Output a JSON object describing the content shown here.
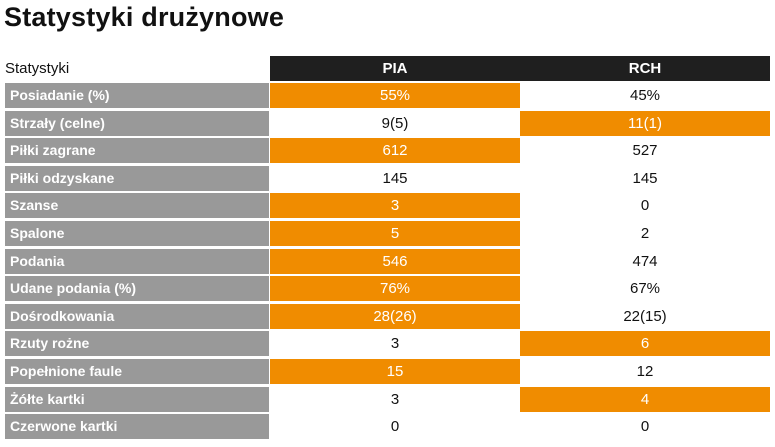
{
  "title": "Statystyki drużynowe",
  "header": {
    "label": "Statystyki",
    "team1": "PIA",
    "team2": "RCH"
  },
  "colors": {
    "highlight": "#f08c00",
    "label_bg": "#999999",
    "header_bg": "#1f1f1f"
  },
  "rows": [
    {
      "label": "Posiadanie (%)",
      "v1": "55%",
      "v2": "45%",
      "highlight": "team1"
    },
    {
      "label": "Strzały (celne)",
      "v1": "9(5)",
      "v2": "11(1)",
      "highlight": "team2"
    },
    {
      "label": "Piłki zagrane",
      "v1": "612",
      "v2": "527",
      "highlight": "team1"
    },
    {
      "label": "Piłki odzyskane",
      "v1": "145",
      "v2": "145",
      "highlight": "none"
    },
    {
      "label": "Szanse",
      "v1": "3",
      "v2": "0",
      "highlight": "team1"
    },
    {
      "label": "Spalone",
      "v1": "5",
      "v2": "2",
      "highlight": "team1"
    },
    {
      "label": "Podania",
      "v1": "546",
      "v2": "474",
      "highlight": "team1"
    },
    {
      "label": "Udane podania (%)",
      "v1": "76%",
      "v2": "67%",
      "highlight": "team1"
    },
    {
      "label": "Dośrodkowania",
      "v1": "28(26)",
      "v2": "22(15)",
      "highlight": "team1"
    },
    {
      "label": "Rzuty rożne",
      "v1": "3",
      "v2": "6",
      "highlight": "team2"
    },
    {
      "label": "Popełnione faule",
      "v1": "15",
      "v2": "12",
      "highlight": "team1"
    },
    {
      "label": "Żółte kartki",
      "v1": "3",
      "v2": "4",
      "highlight": "team2"
    },
    {
      "label": "Czerwone kartki",
      "v1": "0",
      "v2": "0",
      "highlight": "none"
    }
  ]
}
